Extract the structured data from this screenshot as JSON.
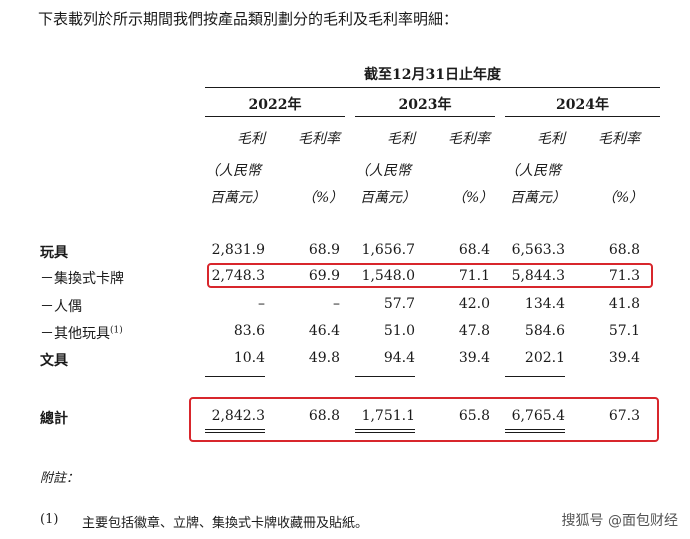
{
  "intro": "下表載列於所示期間我們按產品類別劃分的毛利及毛利率明細：",
  "period_header": "截至12月31日止年度",
  "years": [
    "2022年",
    "2023年",
    "2024年"
  ],
  "col_headers": {
    "gross_profit": "毛利",
    "gross_margin": "毛利率",
    "unit_line1": "（人民幣",
    "unit_line2": "百萬元）",
    "pct": "（%）"
  },
  "rows": [
    {
      "label": "玩具",
      "bold": true,
      "values": [
        "2,831.9",
        "68.9",
        "1,656.7",
        "68.4",
        "6,563.3",
        "68.8"
      ]
    },
    {
      "label": "－集換式卡牌",
      "bold": false,
      "values": [
        "2,748.3",
        "69.9",
        "1,548.0",
        "71.1",
        "5,844.3",
        "71.3"
      ]
    },
    {
      "label": "－人偶",
      "bold": false,
      "values": [
        "–",
        "–",
        "57.7",
        "42.0",
        "134.4",
        "41.8"
      ]
    },
    {
      "label": "－其他玩具",
      "bold": false,
      "sup": "(1)",
      "values": [
        "83.6",
        "46.4",
        "51.0",
        "47.8",
        "584.6",
        "57.1"
      ]
    },
    {
      "label": "文具",
      "bold": true,
      "values": [
        "10.4",
        "49.8",
        "94.4",
        "39.4",
        "202.1",
        "39.4"
      ]
    }
  ],
  "total": {
    "label": "總計",
    "values": [
      "2,842.3",
      "68.8",
      "1,751.1",
      "65.8",
      "6,765.4",
      "67.3"
    ]
  },
  "notes_title": "附註：",
  "notes": [
    {
      "num": "(1)",
      "text": "主要包括徽章、立牌、集換式卡牌收藏冊及貼紙。"
    }
  ],
  "watermark": "搜狐号 @面包财经",
  "highlight_color": "#d8262c"
}
